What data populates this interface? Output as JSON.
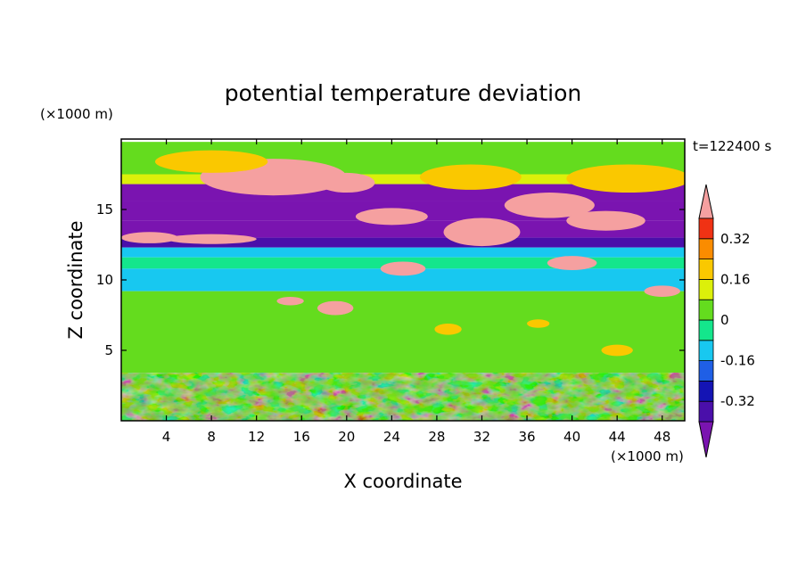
{
  "chart_data": {
    "type": "heatmap",
    "title": "potential temperature deviation",
    "xlabel": "X coordinate",
    "ylabel": "Z coordinate",
    "x_unit": "(×1000 m)",
    "y_unit": "(×1000 m)",
    "time_label": "t=122400 s",
    "xlim": [
      0,
      50
    ],
    "ylim": [
      0,
      20
    ],
    "x_ticks": [
      4,
      8,
      12,
      16,
      20,
      24,
      28,
      32,
      36,
      40,
      44,
      48
    ],
    "y_ticks": [
      5,
      10,
      15
    ],
    "colorbar": {
      "levels": [
        -0.4,
        -0.32,
        -0.24,
        -0.16,
        -0.08,
        0,
        0.08,
        0.16,
        0.24,
        0.32,
        0.4
      ],
      "colors": [
        "#7a14b0",
        "#4a0faa",
        "#1414b4",
        "#1f5fe6",
        "#18c8f0",
        "#14e68c",
        "#64dc1e",
        "#dcf00a",
        "#fac800",
        "#fa8c00",
        "#f03214",
        "#f5a0a0"
      ],
      "labels": [
        {
          "value": 0.32,
          "text": "0.32"
        },
        {
          "value": 0.16,
          "text": "0.16"
        },
        {
          "value": 0,
          "text": "0"
        },
        {
          "value": -0.16,
          "text": "-0.16"
        },
        {
          "value": -0.32,
          "text": "-0.32"
        }
      ]
    },
    "bands": [
      {
        "z": [
          17.5,
          19.8
        ],
        "value": 0.02
      },
      {
        "z": [
          16.8,
          17.5
        ],
        "value": 0.1
      },
      {
        "z": [
          15.6,
          16.8
        ],
        "value": -0.45
      },
      {
        "z": [
          14.2,
          15.6
        ],
        "value": -0.42
      },
      {
        "z": [
          13.0,
          14.2
        ],
        "value": -0.45
      },
      {
        "z": [
          12.3,
          13.0
        ],
        "value": -0.36
      },
      {
        "z": [
          11.6,
          12.3
        ],
        "value": -0.1
      },
      {
        "z": [
          10.8,
          11.6
        ],
        "value": -0.06
      },
      {
        "z": [
          9.2,
          10.8
        ],
        "value": -0.1
      },
      {
        "z": [
          3.4,
          9.2
        ],
        "value": 0.02
      },
      {
        "z": [
          0,
          3.4
        ],
        "value": 0.0
      }
    ],
    "blobs": [
      {
        "x": 13.5,
        "z": 17.3,
        "rx": 6.5,
        "rz": 1.3,
        "value": 0.45
      },
      {
        "x": 20,
        "z": 16.9,
        "rx": 2.5,
        "rz": 0.7,
        "value": 0.45
      },
      {
        "x": 45,
        "z": 17.2,
        "rx": 5.5,
        "rz": 1.0,
        "value": 0.2
      },
      {
        "x": 31,
        "z": 17.3,
        "rx": 4.5,
        "rz": 0.9,
        "value": 0.2
      },
      {
        "x": 8,
        "z": 18.4,
        "rx": 5,
        "rz": 0.8,
        "value": 0.2
      },
      {
        "x": 38,
        "z": 15.3,
        "rx": 4,
        "rz": 0.9,
        "value": 0.45
      },
      {
        "x": 24,
        "z": 14.5,
        "rx": 3.2,
        "rz": 0.6,
        "value": 0.45
      },
      {
        "x": 32,
        "z": 13.4,
        "rx": 3.4,
        "rz": 1.0,
        "value": 0.45
      },
      {
        "x": 43,
        "z": 14.2,
        "rx": 3.5,
        "rz": 0.7,
        "value": 0.45
      },
      {
        "x": 2.5,
        "z": 13.0,
        "rx": 2.5,
        "rz": 0.4,
        "value": 0.45
      },
      {
        "x": 8,
        "z": 12.9,
        "rx": 4,
        "rz": 0.35,
        "value": 0.45
      },
      {
        "x": 40,
        "z": 11.2,
        "rx": 2.2,
        "rz": 0.5,
        "value": 0.45
      },
      {
        "x": 25,
        "z": 10.8,
        "rx": 2,
        "rz": 0.5,
        "value": 0.45
      },
      {
        "x": 48,
        "z": 9.2,
        "rx": 1.6,
        "rz": 0.4,
        "value": 0.45
      },
      {
        "x": 19,
        "z": 8.0,
        "rx": 1.6,
        "rz": 0.5,
        "value": 0.45
      },
      {
        "x": 15,
        "z": 8.5,
        "rx": 1.2,
        "rz": 0.3,
        "value": 0.45
      },
      {
        "x": 29,
        "z": 6.5,
        "rx": 1.2,
        "rz": 0.4,
        "value": 0.2
      },
      {
        "x": 37,
        "z": 6.9,
        "rx": 1.0,
        "rz": 0.3,
        "value": 0.2
      },
      {
        "x": 10,
        "z": 5.6,
        "rx": 1.5,
        "rz": 0.4,
        "value": 0.0
      },
      {
        "x": 44,
        "z": 5.0,
        "rx": 1.4,
        "rz": 0.4,
        "value": 0.2
      }
    ]
  }
}
